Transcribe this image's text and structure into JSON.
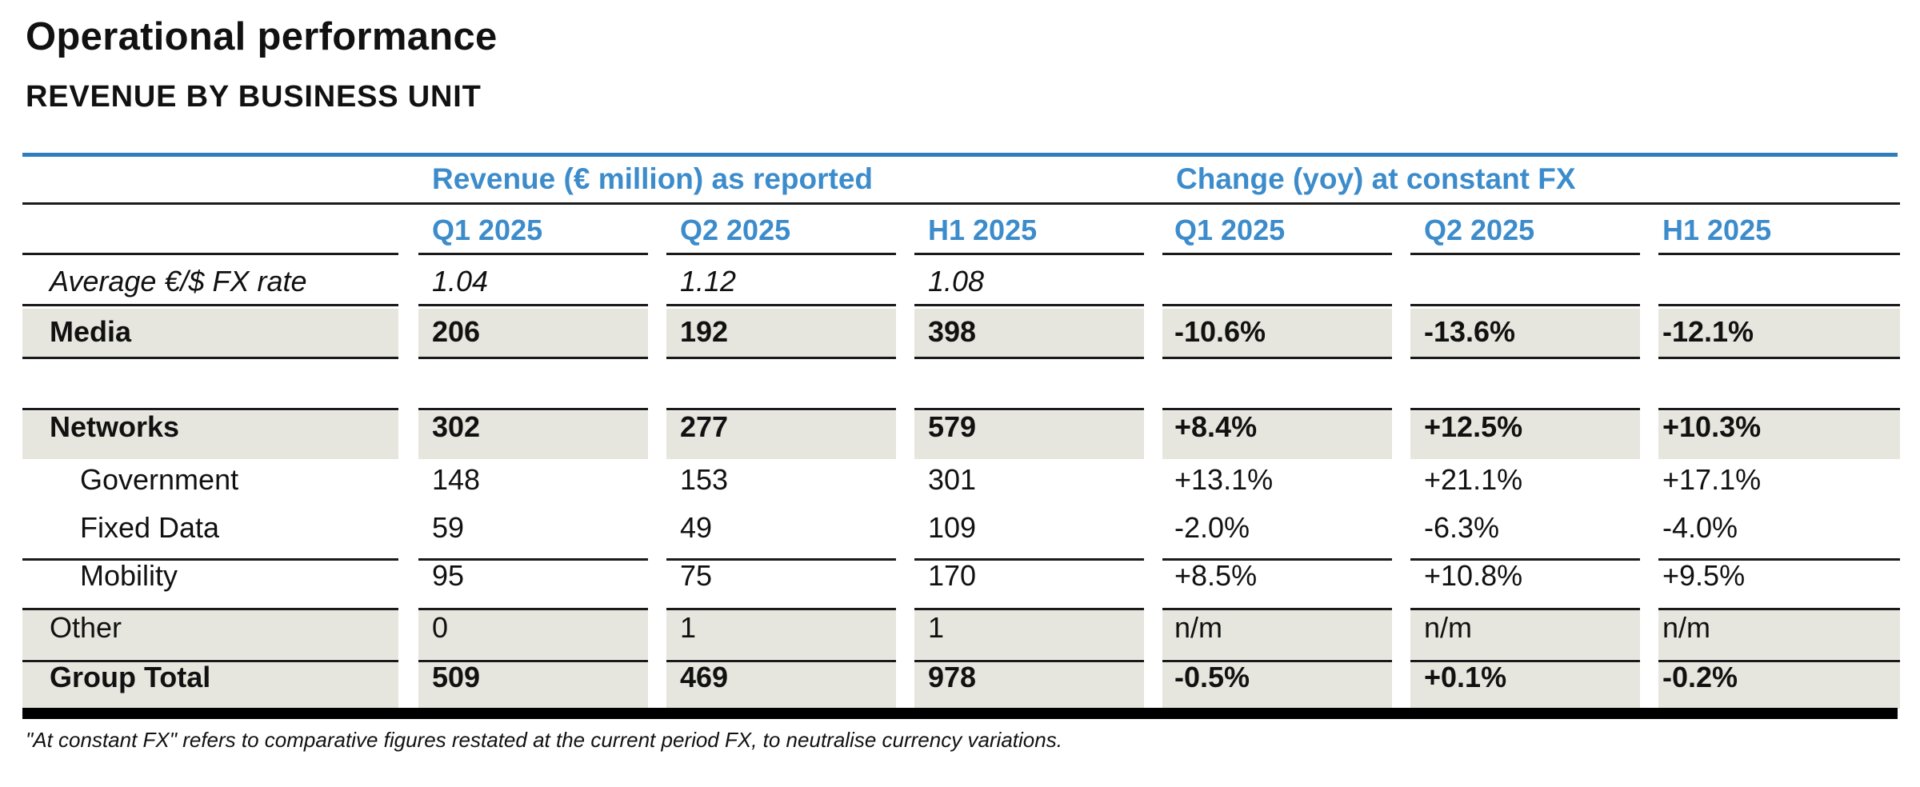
{
  "title": "Operational performance",
  "subtitle": "REVENUE BY BUSINESS UNIT",
  "groups": {
    "reported": "Revenue (€ million) as reported",
    "change": "Change (yoy) at constant FX"
  },
  "columns": [
    "Q1 2025",
    "Q2 2025",
    "H1 2025",
    "Q1 2025",
    "Q2 2025",
    "H1 2025"
  ],
  "rows": [
    {
      "label": "Average €/$ FX rate",
      "cells": [
        "1.04",
        "1.12",
        "1.08",
        "",
        "",
        ""
      ]
    },
    {
      "label": "Media",
      "cells": [
        "206",
        "192",
        "398",
        "-10.6%",
        "-13.6%",
        "-12.1%"
      ]
    },
    {
      "label": "Networks",
      "cells": [
        "302",
        "277",
        "579",
        "+8.4%",
        "+12.5%",
        "+10.3%"
      ]
    },
    {
      "label": "Government",
      "cells": [
        "148",
        "153",
        "301",
        "+13.1%",
        "+21.1%",
        "+17.1%"
      ]
    },
    {
      "label": "Fixed Data",
      "cells": [
        "59",
        "49",
        "109",
        "-2.0%",
        "-6.3%",
        "-4.0%"
      ]
    },
    {
      "label": "Mobility",
      "cells": [
        "95",
        "75",
        "170",
        "+8.5%",
        "+10.8%",
        "+9.5%"
      ]
    },
    {
      "label": "Other",
      "cells": [
        "0",
        "1",
        "1",
        "n/m",
        "n/m",
        "n/m"
      ]
    },
    {
      "label": "Group Total",
      "cells": [
        "509",
        "469",
        "978",
        "-0.5%",
        "+0.1%",
        "-0.2%"
      ]
    }
  ],
  "footnote": "\"At constant FX\" refers to comparative figures restated at the current period FX, to neutralise currency variations."
}
